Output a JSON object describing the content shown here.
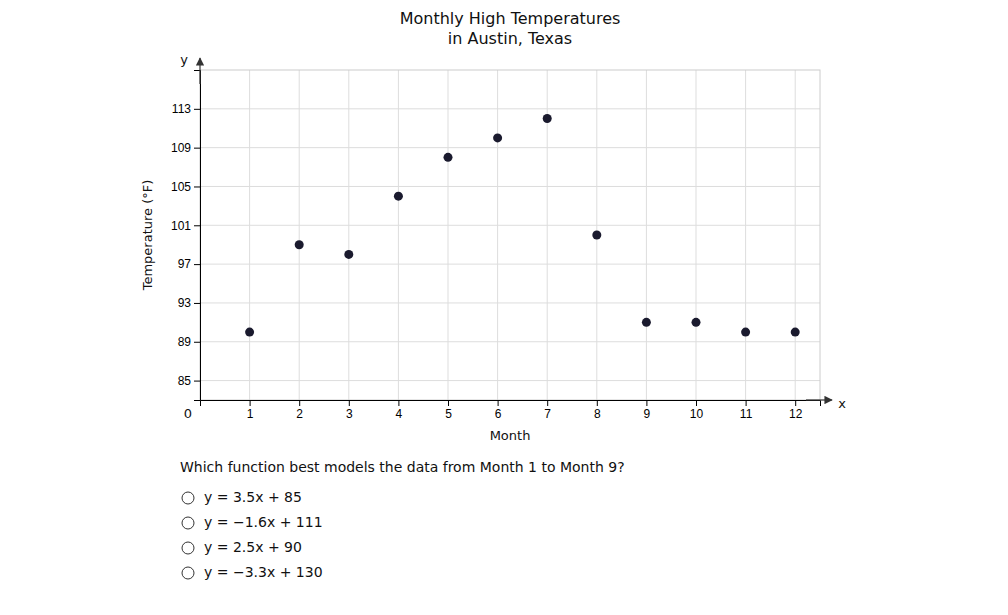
{
  "chart_data": {
    "type": "scatter",
    "title": "Monthly High Temperatures",
    "subtitle": "in Austin, Texas",
    "x_label": "Month",
    "y_label": "Temperature (°F)",
    "x": [
      1,
      2,
      3,
      4,
      5,
      6,
      7,
      8,
      9,
      10,
      11,
      12
    ],
    "values": [
      90,
      99,
      98,
      104,
      108,
      110,
      112,
      100,
      91,
      91,
      90,
      90
    ],
    "color": "#1a1a2e",
    "xlim": [
      0,
      12.5
    ],
    "ylim": [
      83,
      117
    ],
    "xticks": [
      1,
      2,
      3,
      4,
      5,
      6,
      7,
      8,
      9,
      10,
      11,
      12
    ],
    "yticks": [
      85,
      89,
      93,
      97,
      101,
      105,
      109,
      113
    ],
    "grid": true,
    "annotations": [
      "y",
      "x",
      "0"
    ],
    "question": "Which function best models the data from Month 1 to Month 9?",
    "options": [
      "y = 3.5x + 85",
      "y = −1.6x + 111",
      "y = 2.5x + 90",
      "y = −3.3x + 130"
    ]
  }
}
